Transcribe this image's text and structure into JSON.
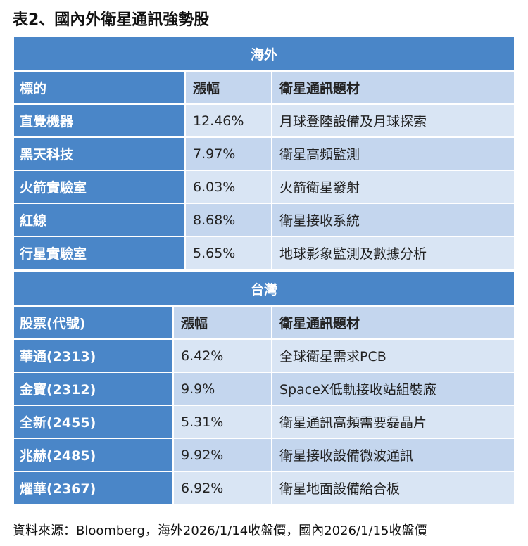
{
  "title": "表2、國內外衛星通訊強勢股",
  "sections": [
    {
      "name": "海外",
      "headers": [
        "標的",
        "漲幅",
        "衛星通訊題材"
      ],
      "rows": [
        [
          "直覺機器",
          "12.46%",
          "月球登陸設備及月球探索"
        ],
        [
          "黑天科技",
          "7.97%",
          "衛星高頻監測"
        ],
        [
          "火箭實驗室",
          "6.03%",
          "火箭衛星發射"
        ],
        [
          "紅線",
          "8.68%",
          "衛星接收系統"
        ],
        [
          "行星實驗室",
          "5.65%",
          "地球影象監測及數據分析"
        ]
      ]
    },
    {
      "name": "台灣",
      "headers": [
        "股票(代號)",
        "漲幅",
        "衛星通訊題材"
      ],
      "rows": [
        [
          "華通(2313)",
          "6.42%",
          "全球衛星需求PCB"
        ],
        [
          "金寶(2312)",
          "9.9%",
          "SpaceX低軌接收站組裝廠"
        ],
        [
          "全新(2455)",
          "5.31%",
          "衛星通訊高頻需要磊晶片"
        ],
        [
          "兆赫(2485)",
          "9.92%",
          "衛星接收設備微波通訊"
        ],
        [
          "燿華(2367)",
          "6.92%",
          "衛星地面設備給合板"
        ]
      ]
    }
  ],
  "source": "資料來源：Bloomberg，海外2026/1/14收盤價，國內2026/1/15收盤價"
}
